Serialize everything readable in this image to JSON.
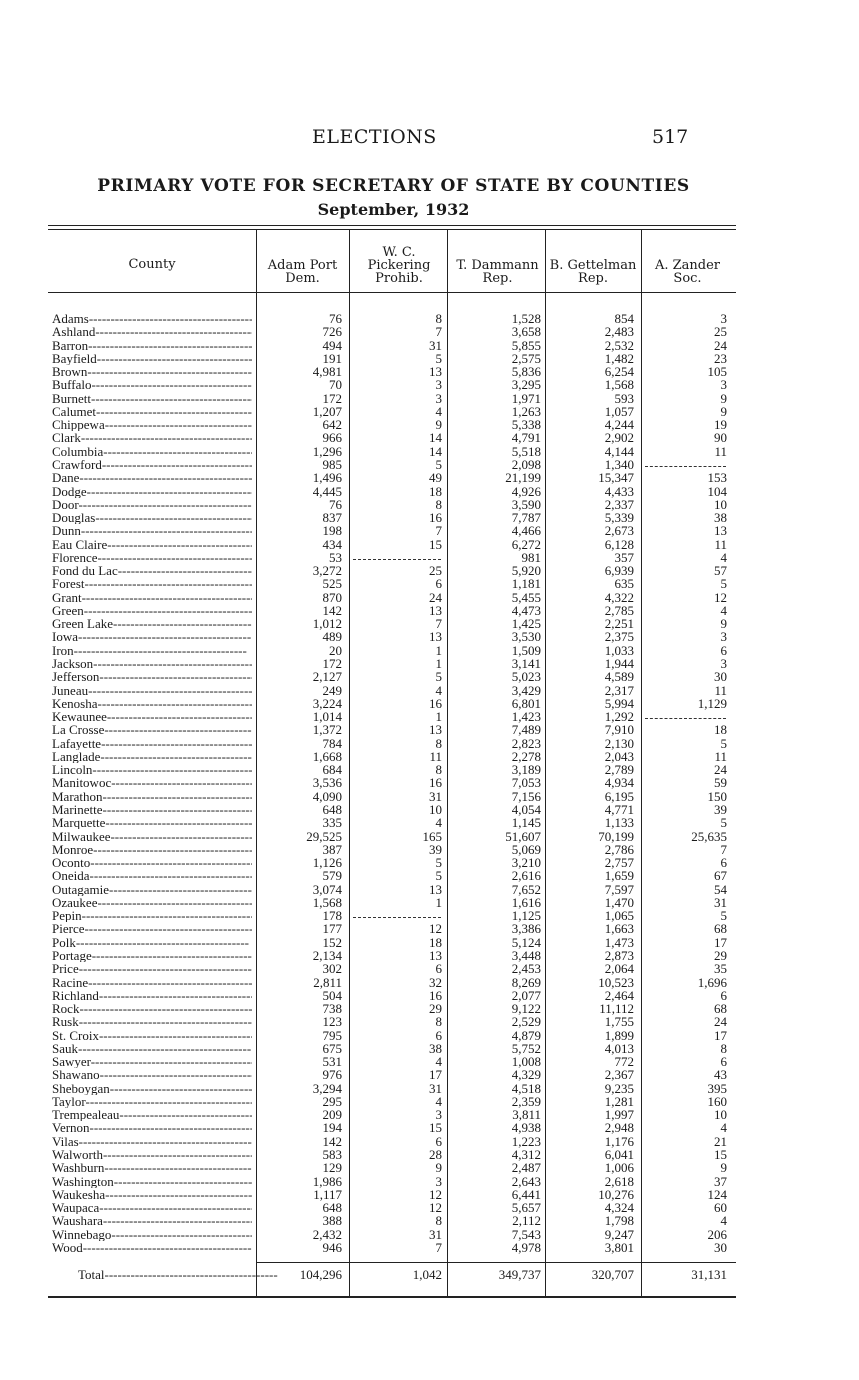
{
  "running_head": "ELECTIONS",
  "page_number": "517",
  "title": "PRIMARY VOTE FOR SECRETARY OF STATE BY COUNTIES",
  "subtitle": "September, 1932",
  "columns": [
    {
      "lines": [
        "County"
      ]
    },
    {
      "lines": [
        "Adam Port",
        "Dem."
      ]
    },
    {
      "lines": [
        "W. C.",
        "Pickering",
        "Prohib."
      ]
    },
    {
      "lines": [
        "T. Dammann",
        "Rep."
      ]
    },
    {
      "lines": [
        "B. Gettelman",
        "Rep."
      ]
    },
    {
      "lines": [
        "A. Zander",
        "Soc."
      ]
    }
  ],
  "rows": [
    [
      "Adams",
      "76",
      "8",
      "1,528",
      "854",
      "3"
    ],
    [
      "Ashland",
      "726",
      "7",
      "3,658",
      "2,483",
      "25"
    ],
    [
      "Barron",
      "494",
      "31",
      "5,855",
      "2,532",
      "24"
    ],
    [
      "Bayfield",
      "191",
      "5",
      "2,575",
      "1,482",
      "23"
    ],
    [
      "Brown",
      "4,981",
      "13",
      "5,836",
      "6,254",
      "105"
    ],
    [
      "Buffalo",
      "70",
      "3",
      "3,295",
      "1,568",
      "3"
    ],
    [
      "Burnett",
      "172",
      "3",
      "1,971",
      "593",
      "9"
    ],
    [
      "Calumet",
      "1,207",
      "4",
      "1,263",
      "1,057",
      "9"
    ],
    [
      "Chippewa",
      "642",
      "9",
      "5,338",
      "4,244",
      "19"
    ],
    [
      "Clark",
      "966",
      "14",
      "4,791",
      "2,902",
      "90"
    ],
    [
      "Columbia",
      "1,296",
      "14",
      "5,518",
      "4,144",
      "11"
    ],
    [
      "Crawford",
      "985",
      "5",
      "2,098",
      "1,340",
      ""
    ],
    [
      "Dane",
      "1,496",
      "49",
      "21,199",
      "15,347",
      "153"
    ],
    [
      "Dodge",
      "4,445",
      "18",
      "4,926",
      "4,433",
      "104"
    ],
    [
      "Door",
      "76",
      "8",
      "3,590",
      "2,337",
      "10"
    ],
    [
      "Douglas",
      "837",
      "16",
      "7,787",
      "5,339",
      "38"
    ],
    [
      "Dunn",
      "198",
      "7",
      "4,466",
      "2,673",
      "13"
    ],
    [
      "Eau Claire",
      "434",
      "15",
      "6,272",
      "6,128",
      "11"
    ],
    [
      "Florence",
      "53",
      "",
      "981",
      "357",
      "4"
    ],
    [
      "Fond du Lac",
      "3,272",
      "25",
      "5,920",
      "6,939",
      "57"
    ],
    [
      "Forest",
      "525",
      "6",
      "1,181",
      "635",
      "5"
    ],
    [
      "Grant",
      "870",
      "24",
      "5,455",
      "4,322",
      "12"
    ],
    [
      "Green",
      "142",
      "13",
      "4,473",
      "2,785",
      "4"
    ],
    [
      "Green Lake",
      "1,012",
      "7",
      "1,425",
      "2,251",
      "9"
    ],
    [
      "Iowa",
      "489",
      "13",
      "3,530",
      "2,375",
      "3"
    ],
    [
      "Iron",
      "20",
      "1",
      "1,509",
      "1,033",
      "6"
    ],
    [
      "Jackson",
      "172",
      "1",
      "3,141",
      "1,944",
      "3"
    ],
    [
      "Jefferson",
      "2,127",
      "5",
      "5,023",
      "4,589",
      "30"
    ],
    [
      "Juneau",
      "249",
      "4",
      "3,429",
      "2,317",
      "11"
    ],
    [
      "Kenosha",
      "3,224",
      "16",
      "6,801",
      "5,994",
      "1,129"
    ],
    [
      "Kewaunee",
      "1,014",
      "1",
      "1,423",
      "1,292",
      ""
    ],
    [
      "La Crosse",
      "1,372",
      "13",
      "7,489",
      "7,910",
      "18"
    ],
    [
      "Lafayette",
      "784",
      "8",
      "2,823",
      "2,130",
      "5"
    ],
    [
      "Langlade",
      "1,668",
      "11",
      "2,278",
      "2,043",
      "11"
    ],
    [
      "Lincoln",
      "684",
      "8",
      "3,189",
      "2,789",
      "24"
    ],
    [
      "Manitowoc",
      "3,536",
      "16",
      "7,053",
      "4,934",
      "59"
    ],
    [
      "Marathon",
      "4,090",
      "31",
      "7,156",
      "6,195",
      "150"
    ],
    [
      "Marinette",
      "648",
      "10",
      "4,054",
      "4,771",
      "39"
    ],
    [
      "Marquette",
      "335",
      "4",
      "1,145",
      "1,133",
      "5"
    ],
    [
      "Milwaukee",
      "29,525",
      "165",
      "51,607",
      "70,199",
      "25,635"
    ],
    [
      "Monroe",
      "387",
      "39",
      "5,069",
      "2,786",
      "7"
    ],
    [
      "Oconto",
      "1,126",
      "5",
      "3,210",
      "2,757",
      "6"
    ],
    [
      "Oneida",
      "579",
      "5",
      "2,616",
      "1,659",
      "67"
    ],
    [
      "Outagamie",
      "3,074",
      "13",
      "7,652",
      "7,597",
      "54"
    ],
    [
      "Ozaukee",
      "1,568",
      "1",
      "1,616",
      "1,470",
      "31"
    ],
    [
      "Pepin",
      "178",
      "",
      "1,125",
      "1,065",
      "5"
    ],
    [
      "Pierce",
      "177",
      "12",
      "3,386",
      "1,663",
      "68"
    ],
    [
      "Polk",
      "152",
      "18",
      "5,124",
      "1,473",
      "17"
    ],
    [
      "Portage",
      "2,134",
      "13",
      "3,448",
      "2,873",
      "29"
    ],
    [
      "Price",
      "302",
      "6",
      "2,453",
      "2,064",
      "35"
    ],
    [
      "Racine",
      "2,811",
      "32",
      "8,269",
      "10,523",
      "1,696"
    ],
    [
      "Richland",
      "504",
      "16",
      "2,077",
      "2,464",
      "6"
    ],
    [
      "Rock",
      "738",
      "29",
      "9,122",
      "11,112",
      "68"
    ],
    [
      "Rusk",
      "123",
      "8",
      "2,529",
      "1,755",
      "24"
    ],
    [
      "St. Croix",
      "795",
      "6",
      "4,879",
      "1,899",
      "17"
    ],
    [
      "Sauk",
      "675",
      "38",
      "5,752",
      "4,013",
      "8"
    ],
    [
      "Sawyer",
      "531",
      "4",
      "1,008",
      "772",
      "6"
    ],
    [
      "Shawano",
      "976",
      "17",
      "4,329",
      "2,367",
      "43"
    ],
    [
      "Sheboygan",
      "3,294",
      "31",
      "4,518",
      "9,235",
      "395"
    ],
    [
      "Taylor",
      "295",
      "4",
      "2,359",
      "1,281",
      "160"
    ],
    [
      "Trempealeau",
      "209",
      "3",
      "3,811",
      "1,997",
      "10"
    ],
    [
      "Vernon",
      "194",
      "15",
      "4,938",
      "2,948",
      "4"
    ],
    [
      "Vilas",
      "142",
      "6",
      "1,223",
      "1,176",
      "21"
    ],
    [
      "Walworth",
      "583",
      "28",
      "4,312",
      "6,041",
      "15"
    ],
    [
      "Washburn",
      "129",
      "9",
      "2,487",
      "1,006",
      "9"
    ],
    [
      "Washington",
      "1,986",
      "3",
      "2,643",
      "2,618",
      "37"
    ],
    [
      "Waukesha",
      "1,117",
      "12",
      "6,441",
      "10,276",
      "124"
    ],
    [
      "Waupaca",
      "648",
      "12",
      "5,657",
      "4,324",
      "60"
    ],
    [
      "Waushara",
      "388",
      "8",
      "2,112",
      "1,798",
      "4"
    ],
    [
      "Winnebago",
      "2,432",
      "31",
      "7,543",
      "9,247",
      "206"
    ],
    [
      "Wood",
      "946",
      "7",
      "4,978",
      "3,801",
      "30"
    ]
  ],
  "total": [
    "Total",
    "104,296",
    "1,042",
    "349,737",
    "320,707",
    "31,131"
  ]
}
